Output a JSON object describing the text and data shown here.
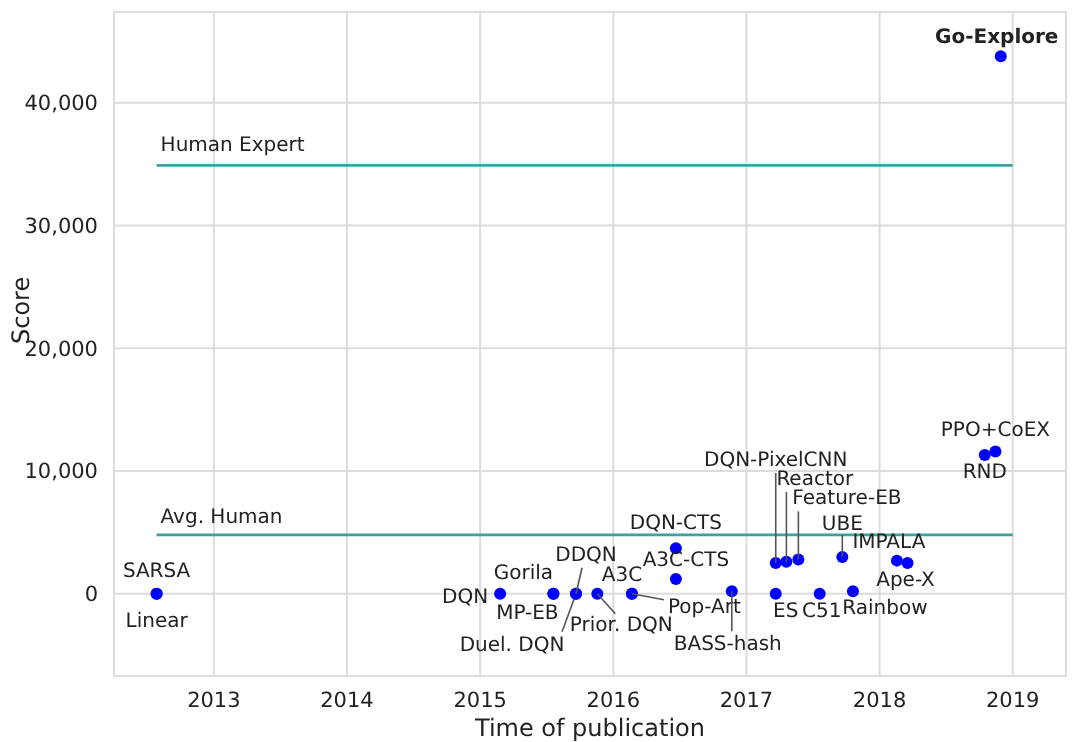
{
  "chart_data": {
    "type": "scatter",
    "xlabel": "Time of publication",
    "ylabel": "Score",
    "xlim": [
      2012.25,
      2019.4
    ],
    "xticks": [
      2013,
      2014,
      2015,
      2016,
      2017,
      2018,
      2019
    ],
    "ylim": [
      -6700,
      47400
    ],
    "yticks": [
      0,
      {
        "value": 10000,
        "label": "10,000"
      },
      {
        "value": 20000,
        "label": "20,000"
      },
      {
        "value": 30000,
        "label": "30,000"
      },
      {
        "value": 40000,
        "label": "40,000"
      }
    ],
    "grid": true,
    "legend": false,
    "marker": "circle",
    "series": [
      {
        "name": "Human Expert",
        "type": "line",
        "color": "#3aa39c",
        "x": [
          2012.57,
          2019.0
        ],
        "values": [
          34900,
          34900
        ],
        "marker": "none"
      },
      {
        "name": "Avg. Human",
        "type": "line",
        "color": "#3aa39c",
        "x": [
          2012.57,
          2019.0
        ],
        "values": [
          4800,
          4800
        ],
        "marker": "none"
      },
      {
        "name": "SARSA",
        "color": "#0000ff",
        "x": [
          2012.57
        ],
        "values": [
          0
        ]
      },
      {
        "name": "Linear",
        "color": "#0000ff",
        "x": [
          2012.57
        ],
        "values": [
          0
        ]
      },
      {
        "name": "DQN",
        "color": "#0000ff",
        "x": [
          2015.15
        ],
        "values": [
          0
        ]
      },
      {
        "name": "Gorila",
        "color": "#0000ff",
        "x": [
          2015.55
        ],
        "values": [
          0
        ]
      },
      {
        "name": "MP-EB",
        "color": "#0000ff",
        "x": [
          2015.55
        ],
        "values": [
          0
        ]
      },
      {
        "name": "Duel. DQN",
        "color": "#0000ff",
        "x": [
          2015.72
        ],
        "values": [
          0
        ]
      },
      {
        "name": "DDQN",
        "color": "#0000ff",
        "x": [
          2015.72
        ],
        "values": [
          0
        ]
      },
      {
        "name": "Prior. DQN",
        "color": "#0000ff",
        "x": [
          2015.88
        ],
        "values": [
          0
        ]
      },
      {
        "name": "A3C",
        "color": "#0000ff",
        "x": [
          2016.14
        ],
        "values": [
          0
        ]
      },
      {
        "name": "Pop-Art",
        "color": "#0000ff",
        "x": [
          2016.14
        ],
        "values": [
          0
        ]
      },
      {
        "name": "BASS-hash",
        "color": "#0000ff",
        "x": [
          2016.89
        ],
        "values": [
          200
        ]
      },
      {
        "name": "DQN-CTS",
        "color": "#0000ff",
        "x": [
          2016.47
        ],
        "values": [
          3700
        ]
      },
      {
        "name": "A3C-CTS",
        "color": "#0000ff",
        "x": [
          2016.47
        ],
        "values": [
          1200
        ]
      },
      {
        "name": "DQN-PixelCNN",
        "color": "#0000ff",
        "x": [
          2017.22
        ],
        "values": [
          2500
        ]
      },
      {
        "name": "ES",
        "color": "#0000ff",
        "x": [
          2017.22
        ],
        "values": [
          0
        ]
      },
      {
        "name": "Reactor",
        "color": "#0000ff",
        "x": [
          2017.3
        ],
        "values": [
          2600
        ]
      },
      {
        "name": "Feature-EB",
        "color": "#0000ff",
        "x": [
          2017.39
        ],
        "values": [
          2800
        ]
      },
      {
        "name": "C51",
        "color": "#0000ff",
        "x": [
          2017.55
        ],
        "values": [
          0
        ]
      },
      {
        "name": "UBE",
        "color": "#0000ff",
        "x": [
          2017.72
        ],
        "values": [
          3000
        ]
      },
      {
        "name": "Rainbow",
        "color": "#0000ff",
        "x": [
          2017.8
        ],
        "values": [
          200
        ]
      },
      {
        "name": "IMPALA",
        "color": "#0000ff",
        "x": [
          2018.13
        ],
        "values": [
          2700
        ]
      },
      {
        "name": "Ape-X",
        "color": "#0000ff",
        "x": [
          2018.21
        ],
        "values": [
          2500
        ]
      },
      {
        "name": "RND",
        "color": "#0000ff",
        "x": [
          2018.79
        ],
        "values": [
          11300
        ]
      },
      {
        "name": "PPO+CoEX",
        "color": "#0000ff",
        "x": [
          2018.87
        ],
        "values": [
          11600
        ]
      },
      {
        "name": "Go-Explore",
        "color": "#0000ff",
        "x": [
          2018.91
        ],
        "values": [
          43800
        ]
      }
    ]
  }
}
